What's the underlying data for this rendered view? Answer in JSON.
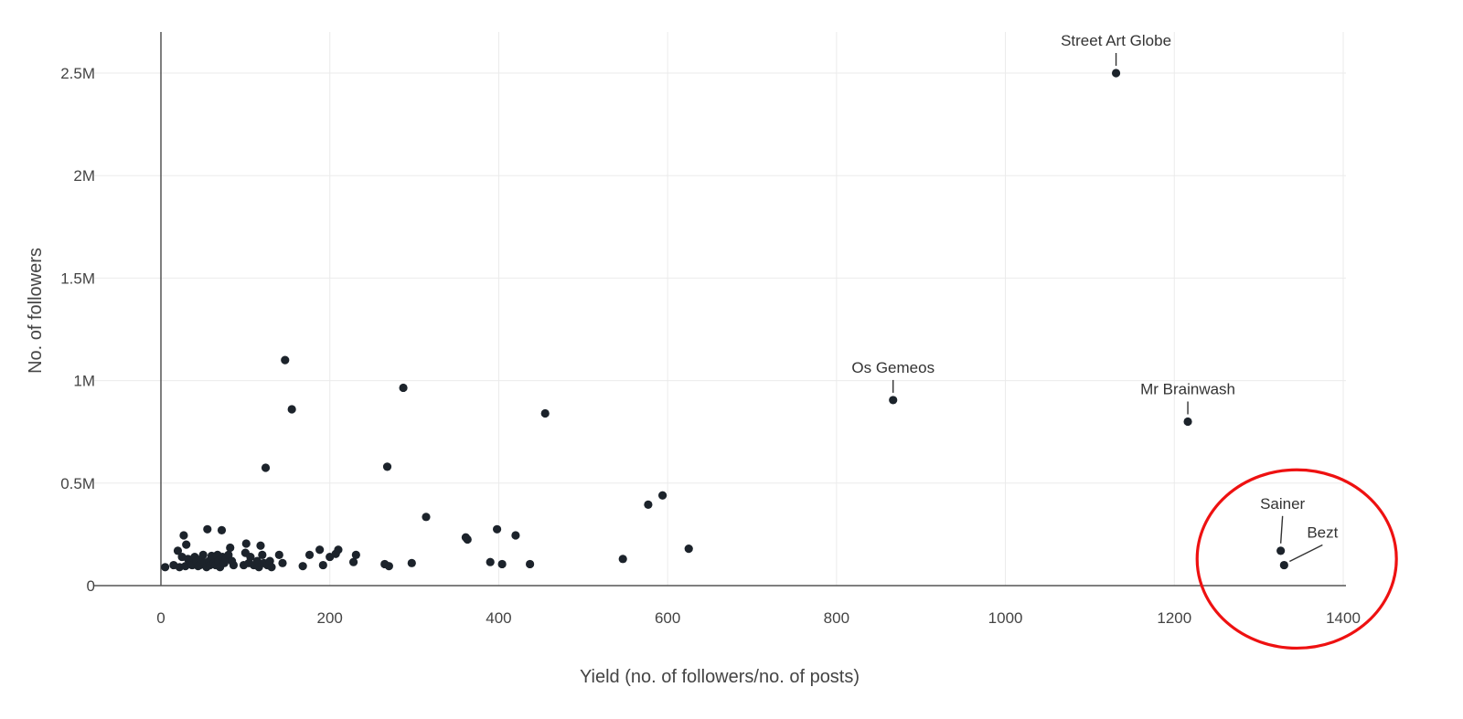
{
  "chart_data": {
    "type": "scatter",
    "xlabel": "Yield (no. of followers/no. of posts)",
    "ylabel": "No. of followers",
    "xlim": [
      -70,
      1410
    ],
    "ylim": [
      0,
      2700000
    ],
    "x_ticks": [
      0,
      200,
      400,
      600,
      800,
      1000,
      1200,
      1400
    ],
    "x_tick_labels": [
      "0",
      "200",
      "400",
      "600",
      "800",
      "1000",
      "1200",
      "1400"
    ],
    "y_ticks": [
      0,
      500000,
      1000000,
      1500000,
      2000000,
      2500000
    ],
    "y_tick_labels": [
      "0",
      "0.5M",
      "1M",
      "1.5M",
      "2M",
      "2.5M"
    ],
    "grid": true,
    "marker_color": "#1c232b",
    "highlight_color": "#ee1111",
    "points": [
      {
        "x": 5,
        "y": 90000
      },
      {
        "x": 15,
        "y": 100000
      },
      {
        "x": 20,
        "y": 170000
      },
      {
        "x": 22,
        "y": 90000
      },
      {
        "x": 25,
        "y": 140000
      },
      {
        "x": 27,
        "y": 245000
      },
      {
        "x": 29,
        "y": 95000
      },
      {
        "x": 30,
        "y": 200000
      },
      {
        "x": 32,
        "y": 130000
      },
      {
        "x": 35,
        "y": 110000
      },
      {
        "x": 37,
        "y": 100000
      },
      {
        "x": 40,
        "y": 140000
      },
      {
        "x": 42,
        "y": 120000
      },
      {
        "x": 44,
        "y": 95000
      },
      {
        "x": 46,
        "y": 100000
      },
      {
        "x": 48,
        "y": 130000
      },
      {
        "x": 50,
        "y": 150000
      },
      {
        "x": 52,
        "y": 110000
      },
      {
        "x": 54,
        "y": 90000
      },
      {
        "x": 55,
        "y": 275000
      },
      {
        "x": 57,
        "y": 120000
      },
      {
        "x": 58,
        "y": 100000
      },
      {
        "x": 60,
        "y": 145000
      },
      {
        "x": 62,
        "y": 130000
      },
      {
        "x": 63,
        "y": 110000
      },
      {
        "x": 65,
        "y": 100000
      },
      {
        "x": 67,
        "y": 150000
      },
      {
        "x": 68,
        "y": 120000
      },
      {
        "x": 70,
        "y": 90000
      },
      {
        "x": 72,
        "y": 270000
      },
      {
        "x": 73,
        "y": 140000
      },
      {
        "x": 75,
        "y": 110000
      },
      {
        "x": 77,
        "y": 130000
      },
      {
        "x": 80,
        "y": 150000
      },
      {
        "x": 82,
        "y": 185000
      },
      {
        "x": 84,
        "y": 120000
      },
      {
        "x": 86,
        "y": 100000
      },
      {
        "x": 98,
        "y": 100000
      },
      {
        "x": 100,
        "y": 160000
      },
      {
        "x": 101,
        "y": 205000
      },
      {
        "x": 104,
        "y": 110000
      },
      {
        "x": 106,
        "y": 140000
      },
      {
        "x": 110,
        "y": 100000
      },
      {
        "x": 114,
        "y": 120000
      },
      {
        "x": 116,
        "y": 90000
      },
      {
        "x": 118,
        "y": 195000
      },
      {
        "x": 120,
        "y": 150000
      },
      {
        "x": 122,
        "y": 110000
      },
      {
        "x": 124,
        "y": 575000
      },
      {
        "x": 126,
        "y": 100000
      },
      {
        "x": 129,
        "y": 120000
      },
      {
        "x": 131,
        "y": 90000
      },
      {
        "x": 140,
        "y": 150000
      },
      {
        "x": 144,
        "y": 110000
      },
      {
        "x": 147,
        "y": 1100000
      },
      {
        "x": 155,
        "y": 860000
      },
      {
        "x": 168,
        "y": 95000
      },
      {
        "x": 176,
        "y": 150000
      },
      {
        "x": 188,
        "y": 175000
      },
      {
        "x": 192,
        "y": 100000
      },
      {
        "x": 200,
        "y": 140000
      },
      {
        "x": 207,
        "y": 155000
      },
      {
        "x": 210,
        "y": 175000
      },
      {
        "x": 228,
        "y": 115000
      },
      {
        "x": 231,
        "y": 150000
      },
      {
        "x": 265,
        "y": 105000
      },
      {
        "x": 268,
        "y": 580000
      },
      {
        "x": 270,
        "y": 95000
      },
      {
        "x": 287,
        "y": 965000
      },
      {
        "x": 297,
        "y": 110000
      },
      {
        "x": 314,
        "y": 335000
      },
      {
        "x": 361,
        "y": 235000
      },
      {
        "x": 363,
        "y": 225000
      },
      {
        "x": 390,
        "y": 115000
      },
      {
        "x": 398,
        "y": 275000
      },
      {
        "x": 404,
        "y": 105000
      },
      {
        "x": 420,
        "y": 245000
      },
      {
        "x": 437,
        "y": 105000
      },
      {
        "x": 455,
        "y": 840000
      },
      {
        "x": 547,
        "y": 130000
      },
      {
        "x": 577,
        "y": 395000
      },
      {
        "x": 594,
        "y": 440000
      },
      {
        "x": 625,
        "y": 180000
      },
      {
        "x": 867,
        "y": 905000
      },
      {
        "x": 1131,
        "y": 2500000
      },
      {
        "x": 1216,
        "y": 800000
      },
      {
        "x": 1326,
        "y": 170000
      },
      {
        "x": 1330,
        "y": 100000
      }
    ],
    "annotations": [
      {
        "text": "Street Art Globe",
        "x": 1131,
        "y": 2500000
      },
      {
        "text": "Os Gemeos",
        "x": 867,
        "y": 905000
      },
      {
        "text": "Mr Brainwash",
        "x": 1216,
        "y": 800000
      },
      {
        "text": "Sainer",
        "x": 1326,
        "y": 170000
      },
      {
        "text": "Bezt",
        "x": 1330,
        "y": 100000
      }
    ],
    "highlight_circle": {
      "cx": 1345,
      "cy": 130000,
      "rx": 118,
      "ry": 435000
    }
  }
}
